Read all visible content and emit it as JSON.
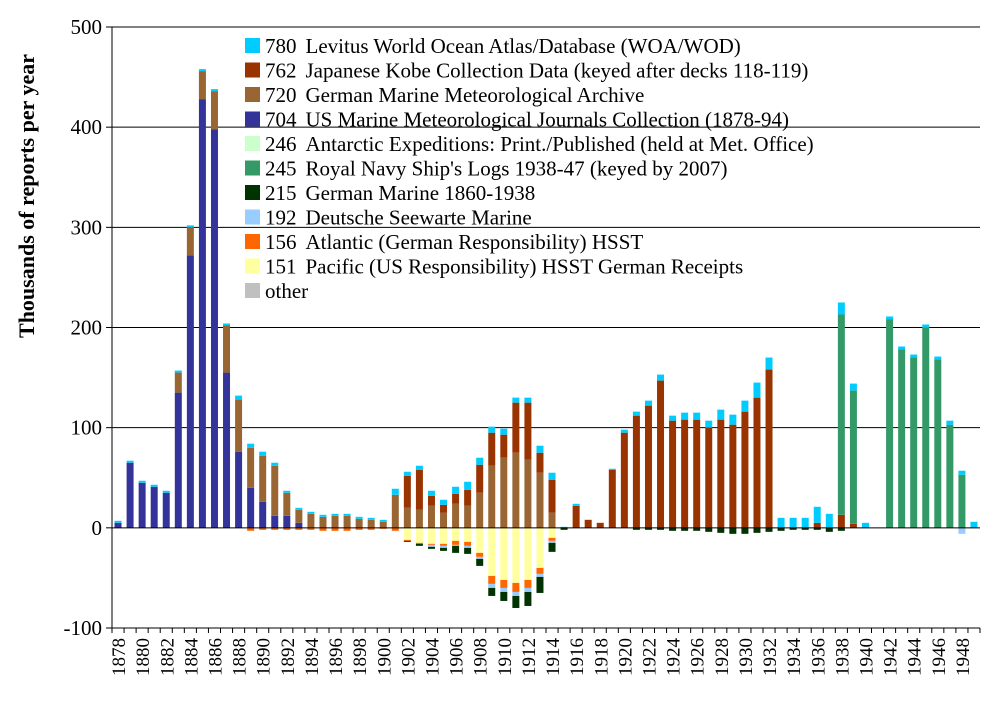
{
  "chart_data": {
    "type": "bar",
    "stacked": true,
    "diverging": true,
    "ylabel": "Thousands of reports per year",
    "ylim": [
      -100,
      500
    ],
    "yticks": [
      -100,
      0,
      100,
      200,
      300,
      400,
      500
    ],
    "grid": "horizontal",
    "legend_position": "top-center (inside plot)",
    "x_tick_labels": [
      "1878",
      "1880",
      "1882",
      "1884",
      "1886",
      "1888",
      "1890",
      "1892",
      "1894",
      "1896",
      "1898",
      "1900",
      "1902",
      "1904",
      "1906",
      "1908",
      "1910",
      "1912",
      "1914",
      "1916",
      "1918",
      "1920",
      "1922",
      "1924",
      "1926",
      "1928",
      "1930",
      "1932",
      "1934",
      "1936",
      "1938",
      "1940",
      "1942",
      "1944",
      "1946",
      "1948"
    ],
    "categories": [
      "1878",
      "1879",
      "1880",
      "1881",
      "1882",
      "1883",
      "1884",
      "1885",
      "1886",
      "1887",
      "1888",
      "1889",
      "1890",
      "1891",
      "1892",
      "1893",
      "1894",
      "1895",
      "1896",
      "1897",
      "1898",
      "1899",
      "1900",
      "1901",
      "1902",
      "1903",
      "1904",
      "1905",
      "1906",
      "1907",
      "1908",
      "1909",
      "1910",
      "1911",
      "1912",
      "1913",
      "1914",
      "1915",
      "1916",
      "1917",
      "1918",
      "1919",
      "1920",
      "1921",
      "1922",
      "1923",
      "1924",
      "1925",
      "1926",
      "1927",
      "1928",
      "1929",
      "1930",
      "1931",
      "1932",
      "1933",
      "1934",
      "1935",
      "1936",
      "1937",
      "1938",
      "1939",
      "1940",
      "1941",
      "1942",
      "1943",
      "1944",
      "1945",
      "1946",
      "1947",
      "1948",
      "1949"
    ],
    "series": [
      {
        "name": "other",
        "id": "other",
        "color": "#c0c0c0",
        "values": [
          0,
          0,
          0,
          0,
          0,
          0,
          0,
          0,
          0,
          0,
          0,
          0,
          0,
          0,
          0,
          0,
          0,
          0,
          0,
          0,
          0,
          0,
          0,
          0,
          0,
          0,
          0,
          0,
          0,
          0,
          0,
          0,
          0,
          0,
          0,
          0,
          0,
          0,
          0,
          0,
          0,
          0,
          0,
          0,
          0,
          0,
          0,
          0,
          0,
          0,
          0,
          0,
          0,
          0,
          0,
          0,
          0,
          0,
          0,
          0,
          0,
          0,
          0,
          0,
          0,
          0,
          0,
          0,
          0,
          0,
          0,
          0
        ]
      },
      {
        "name": "Pacific (US Responsibility) HSST German Receipts",
        "id": "151",
        "color": "#ffffa0",
        "values": [
          0,
          0,
          0,
          0,
          0,
          0,
          0,
          0,
          0,
          0,
          0,
          0,
          0,
          0,
          0,
          0,
          0,
          0,
          0,
          0,
          0,
          0,
          0,
          0,
          -12,
          -15,
          -16,
          -16,
          -13,
          -14,
          -25,
          -48,
          -52,
          -55,
          -52,
          -40,
          -10,
          0,
          0,
          0,
          0,
          0,
          0,
          0,
          0,
          0,
          0,
          0,
          0,
          0,
          0,
          0,
          0,
          0,
          0,
          0,
          0,
          0,
          0,
          0,
          0,
          0,
          0,
          0,
          0,
          0,
          0,
          0,
          0,
          0,
          0,
          0
        ]
      },
      {
        "name": "Atlantic (German Responsibility) HSST",
        "id": "156",
        "color": "#ff6600",
        "values": [
          0,
          0,
          0,
          0,
          0,
          0,
          0,
          0,
          0,
          0,
          0,
          -3,
          -2,
          -2,
          -2,
          -2,
          -2,
          -3,
          -3,
          -3,
          -2,
          -2,
          -1,
          -3,
          -1,
          -1,
          -1,
          -2,
          -4,
          -4,
          -4,
          -8,
          -8,
          -9,
          -8,
          -6,
          -3,
          0,
          0,
          0,
          0,
          0,
          0,
          0,
          0,
          0,
          0,
          0,
          0,
          0,
          0,
          0,
          0,
          0,
          0,
          0,
          0,
          0,
          0,
          0,
          0,
          0,
          0,
          0,
          0,
          0,
          0,
          0,
          0,
          0,
          0,
          0
        ]
      },
      {
        "name": "Deutsche Seewarte Marine",
        "id": "192",
        "color": "#99ccff",
        "values": [
          0,
          0,
          0,
          0,
          0,
          0,
          0,
          0,
          0,
          0,
          0,
          0,
          0,
          0,
          0,
          0,
          0,
          0,
          0,
          0,
          0,
          0,
          0,
          0,
          0,
          0,
          -2,
          -2,
          -1,
          -2,
          -2,
          -4,
          -4,
          -4,
          -4,
          -3,
          -2,
          0,
          0,
          0,
          0,
          0,
          0,
          0,
          0,
          0,
          0,
          0,
          0,
          0,
          0,
          0,
          0,
          0,
          0,
          0,
          0,
          0,
          0,
          0,
          0,
          0,
          0,
          0,
          0,
          0,
          0,
          0,
          0,
          0,
          -6,
          0
        ]
      },
      {
        "name": "German Marine 1860-1938",
        "id": "215",
        "color": "#003300",
        "values": [
          0,
          0,
          0,
          0,
          0,
          0,
          0,
          0,
          0,
          0,
          0,
          0,
          0,
          0,
          0,
          0,
          0,
          0,
          0,
          0,
          0,
          0,
          0,
          0,
          -1,
          -2,
          -2,
          -3,
          -7,
          -6,
          -7,
          -8,
          -9,
          -12,
          -14,
          -16,
          -9,
          -2,
          0,
          0,
          0,
          0,
          0,
          -2,
          -2,
          -2,
          -3,
          -3,
          -3,
          -4,
          -5,
          -6,
          -6,
          -5,
          -4,
          -3,
          -2,
          -2,
          -2,
          -4,
          -3,
          0,
          0,
          0,
          0,
          0,
          0,
          0,
          0,
          0,
          0,
          0
        ]
      },
      {
        "name": "Royal Navy Ship's Logs 1938-47 (keyed by 2007)",
        "id": "245",
        "color": "#339966",
        "values": [
          0,
          0,
          0,
          0,
          0,
          0,
          0,
          0,
          0,
          0,
          0,
          0,
          0,
          0,
          0,
          0,
          0,
          0,
          0,
          0,
          0,
          0,
          0,
          0,
          0,
          0,
          0,
          0,
          0,
          0,
          0,
          0,
          0,
          0,
          0,
          0,
          0,
          0,
          0,
          0,
          0,
          0,
          0,
          0,
          0,
          0,
          0,
          0,
          0,
          0,
          0,
          0,
          0,
          0,
          0,
          0,
          0,
          0,
          0,
          0,
          200,
          133,
          0,
          0,
          208,
          178,
          170,
          200,
          168,
          103,
          53,
          0
        ]
      },
      {
        "name": "Antarctic Expeditions: Print./Published (held at Met. Office)",
        "id": "246",
        "color": "#ccffcc",
        "values": [
          0,
          0,
          0,
          0,
          0,
          0,
          0,
          0,
          0,
          0,
          0,
          0,
          0,
          0,
          0,
          0,
          0,
          0,
          0,
          0,
          0,
          0,
          0,
          0,
          0,
          0,
          0,
          0,
          0,
          0,
          0,
          0,
          0,
          0,
          0,
          0,
          0,
          0,
          0,
          0,
          0,
          0,
          0,
          0,
          0,
          0,
          0,
          0,
          0,
          0,
          0,
          0,
          0,
          0,
          0,
          0,
          0,
          0,
          0,
          0,
          0,
          0,
          0,
          0,
          0,
          0,
          0,
          0,
          0,
          0,
          0,
          0
        ]
      },
      {
        "name": "US Marine Meteorological Journals Collection (1878-94)",
        "id": "704",
        "color": "#333399",
        "values": [
          5,
          65,
          45,
          41,
          35,
          135,
          272,
          428,
          398,
          155,
          76,
          40,
          26,
          12,
          12,
          5,
          0,
          0,
          0,
          0,
          0,
          0,
          0,
          0,
          0,
          0,
          0,
          0,
          0,
          0,
          0,
          0,
          0,
          0,
          0,
          0,
          0,
          0,
          0,
          0,
          0,
          0,
          0,
          0,
          0,
          0,
          0,
          0,
          0,
          0,
          0,
          0,
          0,
          0,
          0,
          0,
          0,
          0,
          0,
          0,
          0,
          0,
          0,
          0,
          0,
          0,
          0,
          0,
          0,
          0,
          0,
          0
        ]
      },
      {
        "name": "German Marine Meteorological Archive",
        "id": "720",
        "color": "#996633",
        "values": [
          0,
          0,
          0,
          0,
          0,
          20,
          28,
          28,
          38,
          47,
          52,
          40,
          46,
          50,
          23,
          13,
          14,
          11,
          12,
          12,
          9,
          8,
          6,
          33,
          20,
          18,
          22,
          15,
          24,
          22,
          35,
          62,
          70,
          75,
          68,
          55,
          15,
          0,
          0,
          0,
          0,
          0,
          0,
          0,
          0,
          0,
          0,
          0,
          0,
          0,
          0,
          0,
          0,
          0,
          0,
          0,
          0,
          0,
          0,
          0,
          0,
          0,
          0,
          0,
          0,
          0,
          0,
          0,
          0,
          0,
          0,
          0
        ]
      },
      {
        "name": "Japanese Kobe Collection Data (keyed after decks 118-119)",
        "id": "762",
        "color": "#993300",
        "values": [
          0,
          0,
          0,
          0,
          0,
          0,
          0,
          0,
          0,
          0,
          0,
          0,
          0,
          0,
          0,
          0,
          0,
          0,
          0,
          0,
          0,
          0,
          0,
          0,
          32,
          40,
          10,
          8,
          10,
          16,
          28,
          33,
          23,
          50,
          57,
          20,
          33,
          0,
          22,
          8,
          5,
          58,
          95,
          112,
          122,
          147,
          107,
          108,
          108,
          100,
          108,
          103,
          116,
          130,
          158,
          0,
          0,
          0,
          5,
          0,
          13,
          4,
          0,
          0,
          0,
          0,
          0,
          0,
          0,
          0,
          0,
          0
        ]
      },
      {
        "name": "Levitus World Ocean Atlas/Database (WOA/WOD)",
        "id": "780",
        "color": "#00ccff",
        "values": [
          2,
          2,
          2,
          2,
          2,
          2,
          2,
          2,
          2,
          2,
          4,
          4,
          4,
          3,
          2,
          2,
          2,
          2,
          2,
          2,
          2,
          2,
          2,
          6,
          4,
          4,
          5,
          5,
          7,
          8,
          7,
          6,
          6,
          5,
          5,
          7,
          7,
          1,
          2,
          0,
          0,
          1,
          3,
          4,
          5,
          6,
          5,
          7,
          7,
          7,
          10,
          10,
          11,
          15,
          12,
          10,
          10,
          10,
          16,
          14,
          12,
          7,
          5,
          0,
          3,
          3,
          3,
          3,
          3,
          4,
          4,
          6
        ]
      }
    ],
    "legend_order": [
      "780",
      "762",
      "720",
      "704",
      "246",
      "245",
      "215",
      "192",
      "156",
      "151",
      "other"
    ]
  }
}
